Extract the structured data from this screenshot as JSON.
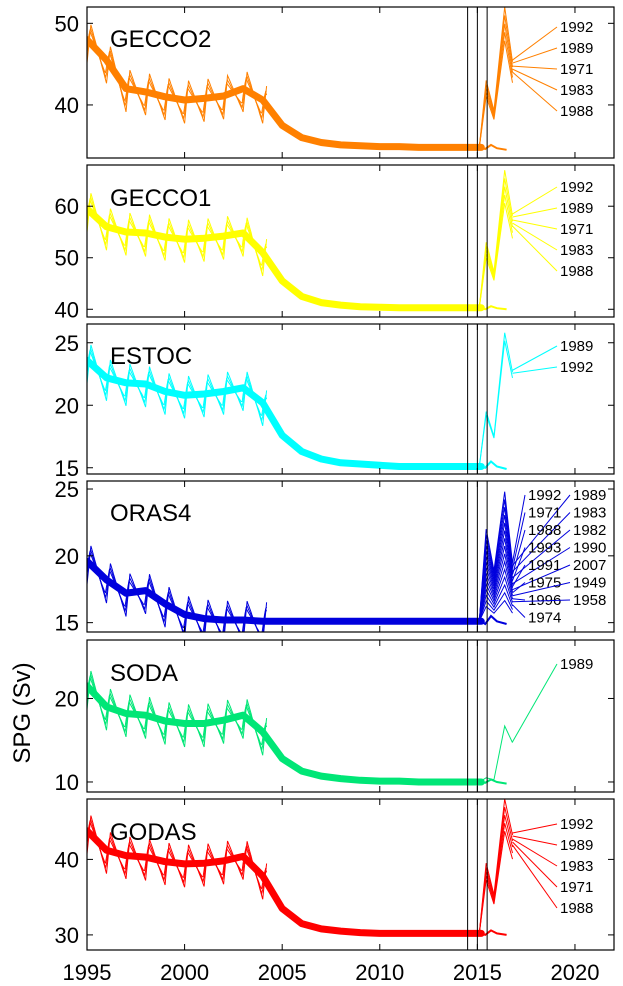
{
  "chart_data": {
    "type": "line",
    "ylabel": "SPG (Sv)",
    "xlim": [
      1995,
      2022
    ],
    "xticks": [
      1995,
      2000,
      2005,
      2010,
      2015,
      2020
    ],
    "vlines": [
      2014.5,
      2015.0,
      2015.5
    ],
    "panels": [
      {
        "label": "GECCO2",
        "color": "#FF8000",
        "ylim": [
          33.5,
          52
        ],
        "yticks": [
          40,
          50
        ],
        "base": [
          [
            1995,
            48
          ],
          [
            1996,
            45.5
          ],
          [
            1997,
            42
          ],
          [
            1998,
            41.6
          ],
          [
            1999,
            41
          ],
          [
            2000,
            40.6
          ],
          [
            2001,
            40.8
          ],
          [
            2002,
            41.1
          ],
          [
            2003,
            42
          ],
          [
            2004,
            40.6
          ],
          [
            2005,
            37.5
          ],
          [
            2006,
            36
          ],
          [
            2007,
            35.4
          ],
          [
            2008,
            35.1
          ],
          [
            2009,
            35
          ],
          [
            2010,
            34.9
          ],
          [
            2011,
            34.9
          ],
          [
            2012,
            34.8
          ],
          [
            2013,
            34.8
          ],
          [
            2014,
            34.8
          ],
          [
            2015.2,
            34.8
          ]
        ],
        "tail": [
          [
            2015.4,
            34.6
          ],
          [
            2015.7,
            35.1
          ],
          [
            2016,
            34.7
          ],
          [
            2016.5,
            34.5
          ]
        ],
        "hindcast_start": 2015.1,
        "hindcast_peaks": [
          [
            2015.5,
            43
          ],
          [
            2016.4,
            52
          ]
        ],
        "hindcast_end": [
          2016.8,
          45.5
        ],
        "years": [
          "1992",
          "1989",
          "1971",
          "1983",
          "1988"
        ]
      },
      {
        "label": "GECCO1",
        "color": "#FFFF00",
        "ylim": [
          38.5,
          68
        ],
        "yticks": [
          40,
          50,
          60
        ],
        "base": [
          [
            1995,
            59.5
          ],
          [
            1996,
            56
          ],
          [
            1997,
            55
          ],
          [
            1998,
            54.8
          ],
          [
            1999,
            54
          ],
          [
            2000,
            53.6
          ],
          [
            2001,
            53.8
          ],
          [
            2002,
            54.2
          ],
          [
            2003,
            54.8
          ],
          [
            2004,
            51
          ],
          [
            2005,
            45.5
          ],
          [
            2006,
            42.5
          ],
          [
            2007,
            41.3
          ],
          [
            2008,
            40.8
          ],
          [
            2009,
            40.5
          ],
          [
            2010,
            40.4
          ],
          [
            2011,
            40.3
          ],
          [
            2012,
            40.3
          ],
          [
            2013,
            40.3
          ],
          [
            2014,
            40.3
          ],
          [
            2015.2,
            40.3
          ]
        ],
        "tail": [
          [
            2015.4,
            40
          ],
          [
            2015.7,
            40.6
          ],
          [
            2016,
            40.2
          ],
          [
            2016.5,
            40
          ]
        ],
        "hindcast_start": 2015.1,
        "hindcast_peaks": [
          [
            2015.5,
            53
          ],
          [
            2016.4,
            67
          ]
        ],
        "hindcast_end": [
          2016.8,
          58.5
        ],
        "years": [
          "1992",
          "1989",
          "1971",
          "1983",
          "1988"
        ]
      },
      {
        "label": "ESTOC",
        "color": "#00FFFF",
        "ylim": [
          14.5,
          26.5
        ],
        "yticks": [
          15,
          20,
          25
        ],
        "base": [
          [
            1995,
            23.6
          ],
          [
            1996,
            22.2
          ],
          [
            1997,
            21.8
          ],
          [
            1998,
            21.7
          ],
          [
            1999,
            21.1
          ],
          [
            2000,
            20.8
          ],
          [
            2001,
            20.9
          ],
          [
            2002,
            21.1
          ],
          [
            2003,
            21.4
          ],
          [
            2004,
            20.2
          ],
          [
            2005,
            17.6
          ],
          [
            2006,
            16.3
          ],
          [
            2007,
            15.7
          ],
          [
            2008,
            15.4
          ],
          [
            2009,
            15.3
          ],
          [
            2010,
            15.2
          ],
          [
            2011,
            15.1
          ],
          [
            2012,
            15.1
          ],
          [
            2013,
            15.1
          ],
          [
            2014,
            15.1
          ],
          [
            2015.2,
            15.1
          ]
        ],
        "tail": [
          [
            2015.4,
            15
          ],
          [
            2015.7,
            15.5
          ],
          [
            2016,
            15.1
          ],
          [
            2016.5,
            14.9
          ]
        ],
        "hindcast_start": 2015.1,
        "hindcast_peaks": [
          [
            2015.5,
            19.5
          ],
          [
            2016.4,
            25.8
          ]
        ],
        "hindcast_end": [
          2016.8,
          22.8
        ],
        "years": [
          "1989",
          "1992"
        ]
      },
      {
        "label": "ORAS4",
        "color": "#0000DD",
        "ylim": [
          14.3,
          25.6
        ],
        "yticks": [
          15,
          20,
          25
        ],
        "base": [
          [
            1995,
            19.6
          ],
          [
            1996,
            18.2
          ],
          [
            1997,
            17.2
          ],
          [
            1998,
            17.4
          ],
          [
            1999,
            16.4
          ],
          [
            2000,
            15.6
          ],
          [
            2001,
            15.3
          ],
          [
            2002,
            15.2
          ],
          [
            2003,
            15.2
          ],
          [
            2004,
            15.1
          ],
          [
            2005,
            15.1
          ],
          [
            2006,
            15.1
          ],
          [
            2007,
            15.1
          ],
          [
            2008,
            15.1
          ],
          [
            2009,
            15.1
          ],
          [
            2010,
            15.1
          ],
          [
            2011,
            15.1
          ],
          [
            2012,
            15.1
          ],
          [
            2013,
            15.1
          ],
          [
            2014,
            15.1
          ],
          [
            2015.2,
            15.1
          ]
        ],
        "tail": [
          [
            2015.4,
            14.9
          ],
          [
            2015.7,
            15.5
          ],
          [
            2016,
            15.1
          ],
          [
            2016.5,
            14.9
          ]
        ],
        "hindcast_start": 2015.1,
        "hindcast_peaks": [
          [
            2015.5,
            22
          ],
          [
            2016.4,
            24.8
          ]
        ],
        "hindcast_end": [
          2016.8,
          19.5
        ],
        "years": [
          "1992",
          "1989",
          "1971",
          "1983",
          "1988",
          "1982",
          "1993",
          "1990",
          "1991",
          "2007",
          "1975",
          "1949",
          "1996",
          "1958",
          "1974"
        ]
      },
      {
        "label": "SODA",
        "color": "#00E676",
        "ylim": [
          8.8,
          27
        ],
        "yticks": [
          10,
          20
        ],
        "base": [
          [
            1995,
            21.5
          ],
          [
            1996,
            19
          ],
          [
            1997,
            18.2
          ],
          [
            1998,
            18
          ],
          [
            1999,
            17.3
          ],
          [
            2000,
            17
          ],
          [
            2001,
            17
          ],
          [
            2002,
            17.4
          ],
          [
            2003,
            18
          ],
          [
            2004,
            16
          ],
          [
            2005,
            12.8
          ],
          [
            2006,
            11.3
          ],
          [
            2007,
            10.7
          ],
          [
            2008,
            10.4
          ],
          [
            2009,
            10.2
          ],
          [
            2010,
            10.1
          ],
          [
            2011,
            10.1
          ],
          [
            2012,
            10
          ],
          [
            2013,
            10
          ],
          [
            2014,
            10
          ],
          [
            2015.2,
            10
          ]
        ],
        "tail": [
          [
            2015.4,
            9.9
          ],
          [
            2015.7,
            10.3
          ],
          [
            2016,
            10
          ],
          [
            2016.5,
            9.8
          ]
        ],
        "hindcast_start": 2015.1,
        "hindcast_peaks": [
          [
            2015.5,
            10.5
          ],
          [
            2016.4,
            16.7
          ]
        ],
        "hindcast_end": [
          2016.8,
          14.8
        ],
        "years": [
          "1989"
        ]
      },
      {
        "label": "GODAS",
        "color": "#FF0000",
        "ylim": [
          28,
          48
        ],
        "yticks": [
          30,
          40
        ],
        "base": [
          [
            1995,
            43.8
          ],
          [
            1996,
            41.2
          ],
          [
            1997,
            40.5
          ],
          [
            1998,
            40.3
          ],
          [
            1999,
            39.7
          ],
          [
            2000,
            39.4
          ],
          [
            2001,
            39.5
          ],
          [
            2002,
            39.8
          ],
          [
            2003,
            40.4
          ],
          [
            2004,
            37.8
          ],
          [
            2005,
            33.5
          ],
          [
            2006,
            31.5
          ],
          [
            2007,
            30.8
          ],
          [
            2008,
            30.5
          ],
          [
            2009,
            30.3
          ],
          [
            2010,
            30.2
          ],
          [
            2011,
            30.2
          ],
          [
            2012,
            30.2
          ],
          [
            2013,
            30.2
          ],
          [
            2014,
            30.2
          ],
          [
            2015.2,
            30.2
          ]
        ],
        "tail": [
          [
            2015.4,
            30
          ],
          [
            2015.7,
            30.6
          ],
          [
            2016,
            30.2
          ],
          [
            2016.5,
            30
          ]
        ],
        "hindcast_start": 2015.1,
        "hindcast_peaks": [
          [
            2015.5,
            39.5
          ],
          [
            2016.4,
            48
          ]
        ],
        "hindcast_end": [
          2016.8,
          43.5
        ],
        "years": [
          "1992",
          "1989",
          "1983",
          "1971",
          "1988"
        ]
      }
    ]
  }
}
